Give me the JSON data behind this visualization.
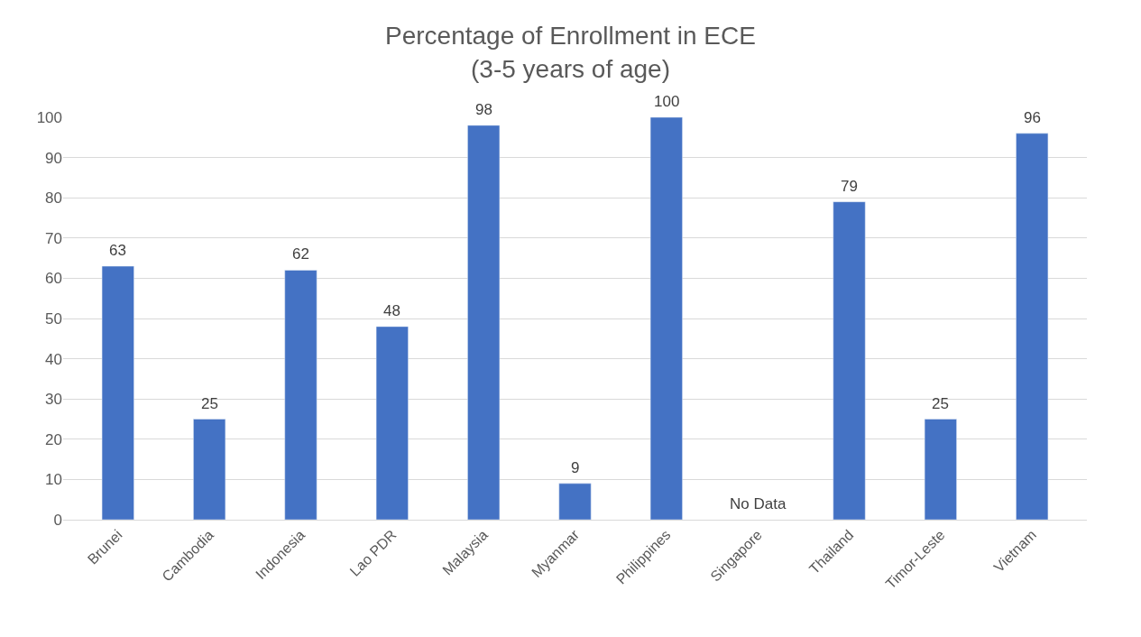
{
  "chart_data": {
    "type": "bar",
    "title": "Percentage of Enrollment in ECE\n(3-5 years of age)",
    "categories": [
      "Brunei",
      "Cambodia",
      "Indonesia",
      "Lao PDR",
      "Malaysia",
      "Myanmar",
      "Philippines",
      "Singapore",
      "Thailand",
      "Timor-Leste",
      "Vietnam"
    ],
    "values": [
      63,
      25,
      62,
      48,
      98,
      9,
      100,
      null,
      79,
      25,
      96
    ],
    "value_labels": [
      "63",
      "25",
      "62",
      "48",
      "98",
      "9",
      "100",
      "No Data",
      "79",
      "25",
      "96"
    ],
    "color": "#4472c4",
    "ylim": [
      0,
      100
    ],
    "yticks": [
      0,
      10,
      20,
      30,
      40,
      50,
      60,
      70,
      80,
      90,
      100
    ],
    "grid": "y"
  }
}
